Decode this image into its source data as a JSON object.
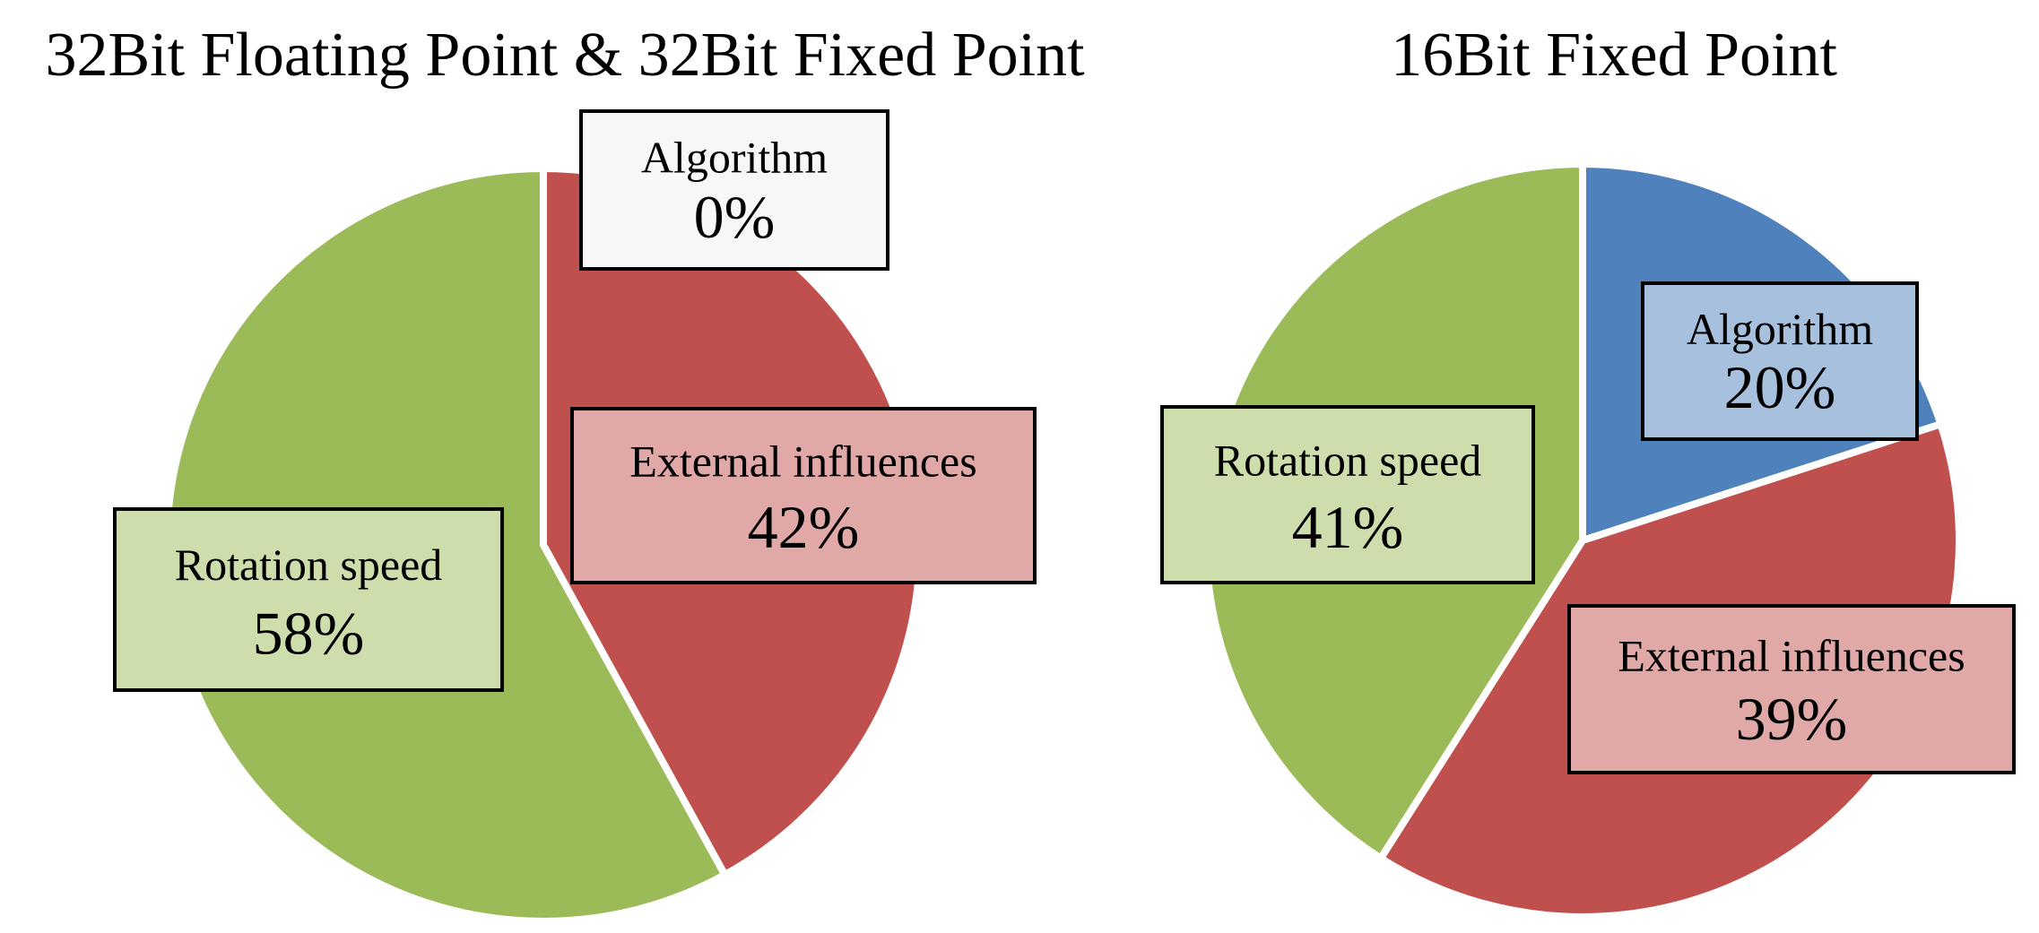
{
  "chart_data": [
    {
      "type": "pie",
      "title": "32Bit Floating Point & 32Bit Fixed Point",
      "slices": [
        {
          "label": "Algorithm",
          "value": 0,
          "value_label": "0%",
          "color": "#4F81BD"
        },
        {
          "label": "External influences",
          "value": 42,
          "value_label": "42%",
          "color": "#C0504D"
        },
        {
          "label": "Rotation speed",
          "value": 58,
          "value_label": "58%",
          "color": "#9BBB59"
        }
      ]
    },
    {
      "type": "pie",
      "title": "16Bit Fixed Point",
      "slices": [
        {
          "label": "Algorithm",
          "value": 20,
          "value_label": "20%",
          "color": "#4F81BD"
        },
        {
          "label": "External influences",
          "value": 39,
          "value_label": "39%",
          "color": "#C0504D"
        },
        {
          "label": "Rotation speed",
          "value": 41,
          "value_label": "41%",
          "color": "#9BBB59"
        }
      ]
    }
  ]
}
